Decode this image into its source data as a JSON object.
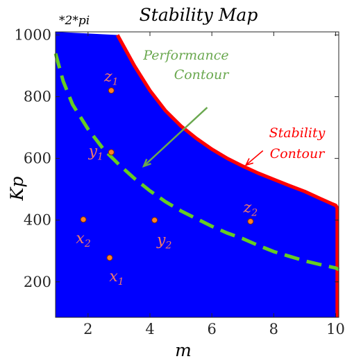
{
  "chart_data": {
    "type": "area",
    "title": "Stability Map",
    "xlabel": "m",
    "ylabel": "Kp",
    "y_multiplier_label": "*2*pi",
    "xlim": [
      0.95,
      10.1
    ],
    "ylim": [
      85,
      1010
    ],
    "xticks": [
      2,
      4,
      6,
      8,
      10
    ],
    "yticks": [
      200,
      400,
      600,
      800,
      1000
    ],
    "grid": false,
    "colors": {
      "region": "#0000ff",
      "stability": "#ff0000",
      "performance": "#66cc22",
      "point_fill": "#ff7f27",
      "point_label": "#f07a6a",
      "stability_label": "#ff0000",
      "performance_label": "#6aa84f"
    },
    "series": [
      {
        "name": "Stability Contour",
        "x": [
          2.95,
          3.5,
          4.0,
          4.5,
          5.0,
          5.5,
          6.0,
          6.5,
          7.0,
          7.5,
          8.0,
          8.5,
          9.0,
          9.5,
          9.9,
          10.0,
          10.05,
          10.05
        ],
        "y": [
          1000,
          900,
          820,
          755,
          705,
          665,
          630,
          600,
          575,
          552,
          532,
          512,
          493,
          470,
          452,
          448,
          440,
          85
        ]
      },
      {
        "name": "Performance Contour",
        "x": [
          0.95,
          1.2,
          1.5,
          2.0,
          2.5,
          3.0,
          3.5,
          4.0,
          4.5,
          5.0,
          5.5,
          6.0,
          6.5,
          7.0,
          7.5,
          8.0,
          8.5,
          9.0,
          9.5,
          10.0,
          10.1
        ],
        "y": [
          940,
          850,
          775,
          695,
          630,
          580,
          535,
          495,
          460,
          430,
          405,
          380,
          358,
          340,
          318,
          298,
          283,
          268,
          256,
          245,
          240
        ]
      }
    ],
    "points": [
      {
        "label": "z",
        "sub": "1",
        "x": 2.75,
        "y": 820
      },
      {
        "label": "y",
        "sub": "1",
        "x": 2.75,
        "y": 620
      },
      {
        "label": "x",
        "sub": "2",
        "x": 1.85,
        "y": 402
      },
      {
        "label": "y",
        "sub": "2",
        "x": 4.15,
        "y": 400
      },
      {
        "label": "z",
        "sub": "2",
        "x": 7.25,
        "y": 396
      },
      {
        "label": "x",
        "sub": "1",
        "x": 2.7,
        "y": 278
      }
    ],
    "annotations": [
      {
        "lines": [
          "Performance",
          "Contour"
        ],
        "arrow_from": [
          5.85,
          765
        ],
        "arrow_to": [
          3.8,
          575
        ]
      },
      {
        "lines": [
          "Stability",
          "Contour"
        ],
        "arrow_from": [
          7.65,
          625
        ],
        "arrow_to": [
          7.1,
          578
        ]
      }
    ]
  }
}
